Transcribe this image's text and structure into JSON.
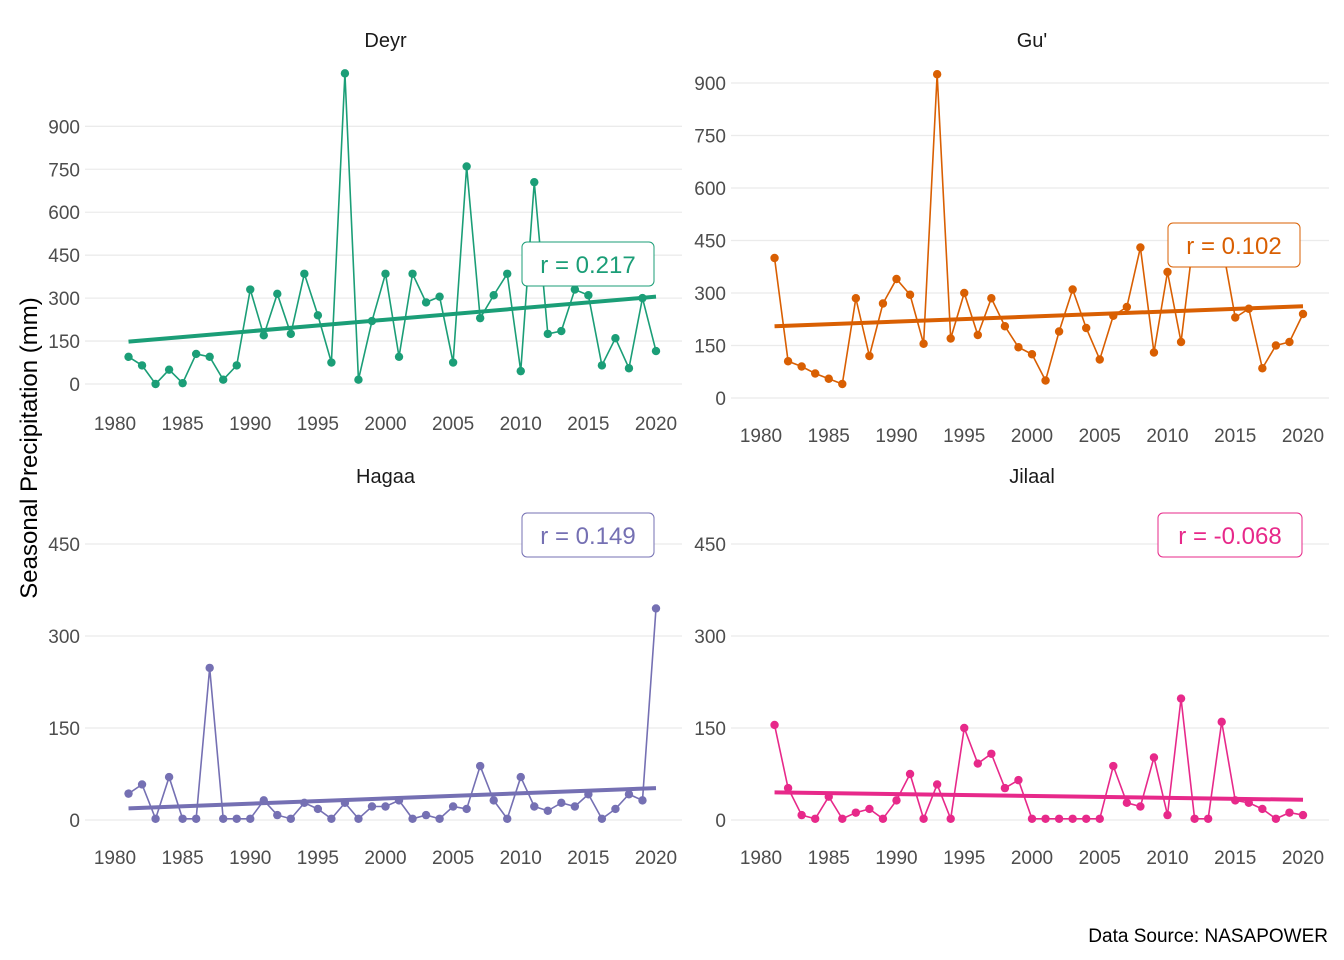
{
  "ylabel": "Seasonal Precipitation (mm)",
  "caption": "Data Source: NASAPOWER",
  "chart_data": [
    {
      "type": "line",
      "panel": "Deyr",
      "color": "#1b9e77",
      "r_label": "r = 0.217",
      "xlim": [
        1980,
        2020
      ],
      "ylim": [
        0,
        1000
      ],
      "xticks": [
        1980,
        1985,
        1990,
        1995,
        2000,
        2005,
        2010,
        2015,
        2020
      ],
      "yticks": [
        0,
        150,
        300,
        450,
        600,
        750,
        900
      ],
      "x": [
        1981,
        1982,
        1983,
        1984,
        1985,
        1986,
        1987,
        1988,
        1989,
        1990,
        1991,
        1992,
        1993,
        1994,
        1995,
        1996,
        1997,
        1998,
        1999,
        2000,
        2001,
        2002,
        2003,
        2004,
        2005,
        2006,
        2007,
        2008,
        2009,
        2010,
        2011,
        2012,
        2013,
        2014,
        2015,
        2016,
        2017,
        2018,
        2019,
        2020
      ],
      "values": [
        95,
        65,
        0,
        50,
        3,
        105,
        95,
        15,
        65,
        330,
        170,
        315,
        175,
        385,
        240,
        75,
        1085,
        15,
        220,
        385,
        95,
        385,
        285,
        305,
        75,
        760,
        230,
        310,
        385,
        45,
        705,
        175,
        185,
        330,
        310,
        65,
        160,
        55,
        300,
        115
      ],
      "trend": [
        [
          1981,
          148
        ],
        [
          2020,
          305
        ]
      ]
    },
    {
      "type": "line",
      "panel": "Gu'",
      "color": "#d95f02",
      "r_label": "r = 0.102",
      "xlim": [
        1980,
        2020
      ],
      "ylim": [
        0,
        950
      ],
      "xticks": [
        1980,
        1985,
        1990,
        1995,
        2000,
        2005,
        2010,
        2015,
        2020
      ],
      "yticks": [
        0,
        150,
        300,
        450,
        600,
        750,
        900
      ],
      "x": [
        1981,
        1982,
        1983,
        1984,
        1985,
        1986,
        1987,
        1988,
        1989,
        1990,
        1991,
        1992,
        1993,
        1994,
        1995,
        1996,
        1997,
        1998,
        1999,
        2000,
        2001,
        2002,
        2003,
        2004,
        2005,
        2006,
        2007,
        2008,
        2009,
        2010,
        2011,
        2012,
        2013,
        2014,
        2015,
        2016,
        2017,
        2018,
        2019,
        2020
      ],
      "values": [
        400,
        105,
        90,
        70,
        55,
        40,
        285,
        120,
        270,
        340,
        295,
        155,
        925,
        170,
        300,
        180,
        285,
        205,
        145,
        125,
        50,
        190,
        310,
        200,
        110,
        235,
        260,
        430,
        130,
        360,
        160,
        480,
        460,
        445,
        230,
        255,
        85,
        150,
        160,
        240
      ],
      "trend": [
        [
          1981,
          205
        ],
        [
          2020,
          262
        ]
      ]
    },
    {
      "type": "line",
      "panel": "Hagaa",
      "color": "#7570b3",
      "r_label": "r = 0.149",
      "xlim": [
        1980,
        2020
      ],
      "ylim": [
        0,
        450
      ],
      "xticks": [
        1980,
        1985,
        1990,
        1995,
        2000,
        2005,
        2010,
        2015,
        2020
      ],
      "yticks": [
        0,
        150,
        300,
        450
      ],
      "x": [
        1981,
        1982,
        1983,
        1984,
        1985,
        1986,
        1987,
        1988,
        1989,
        1990,
        1991,
        1992,
        1993,
        1994,
        1995,
        1996,
        1997,
        1998,
        1999,
        2000,
        2001,
        2002,
        2003,
        2004,
        2005,
        2006,
        2007,
        2008,
        2009,
        2010,
        2011,
        2012,
        2013,
        2014,
        2015,
        2016,
        2017,
        2018,
        2019,
        2020
      ],
      "values": [
        43,
        58,
        2,
        70,
        2,
        2,
        248,
        2,
        2,
        2,
        32,
        8,
        2,
        28,
        18,
        2,
        28,
        2,
        22,
        22,
        32,
        2,
        8,
        2,
        22,
        18,
        88,
        32,
        2,
        70,
        22,
        15,
        28,
        22,
        42,
        2,
        18,
        42,
        32,
        345
      ],
      "trend": [
        [
          1981,
          19
        ],
        [
          2020,
          52
        ]
      ]
    },
    {
      "type": "line",
      "panel": "Jilaal",
      "color": "#e7298a",
      "r_label": "r = -0.068",
      "xlim": [
        1980,
        2020
      ],
      "ylim": [
        0,
        450
      ],
      "xticks": [
        1980,
        1985,
        1990,
        1995,
        2000,
        2005,
        2010,
        2015,
        2020
      ],
      "yticks": [
        0,
        150,
        300,
        450
      ],
      "x": [
        1981,
        1982,
        1983,
        1984,
        1985,
        1986,
        1987,
        1988,
        1989,
        1990,
        1991,
        1992,
        1993,
        1994,
        1995,
        1996,
        1997,
        1998,
        1999,
        2000,
        2001,
        2002,
        2003,
        2004,
        2005,
        2006,
        2007,
        2008,
        2009,
        2010,
        2011,
        2012,
        2013,
        2014,
        2015,
        2016,
        2017,
        2018,
        2019,
        2020
      ],
      "values": [
        155,
        52,
        8,
        2,
        38,
        2,
        12,
        18,
        2,
        32,
        75,
        2,
        58,
        2,
        150,
        92,
        108,
        52,
        65,
        2,
        2,
        2,
        2,
        2,
        2,
        88,
        28,
        22,
        102,
        8,
        198,
        2,
        2,
        160,
        32,
        28,
        18,
        2,
        12,
        8
      ],
      "trend": [
        [
          1981,
          45
        ],
        [
          2020,
          33
        ]
      ]
    }
  ]
}
